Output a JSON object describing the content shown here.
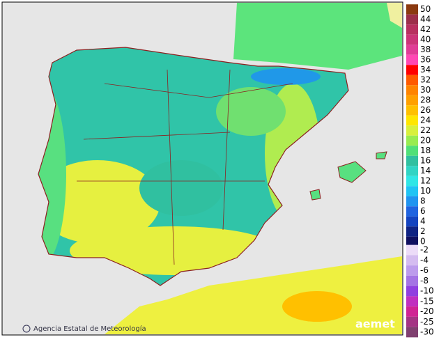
{
  "credit": "Agencia Estatal de Meteorología",
  "logo": "aemet",
  "legend": {
    "positive": [
      {
        "label": "50",
        "color": "#8b3a10"
      },
      {
        "label": "44",
        "color": "#9c2f4a"
      },
      {
        "label": "42",
        "color": "#b8305f"
      },
      {
        "label": "40",
        "color": "#cc3478"
      },
      {
        "label": "38",
        "color": "#e03c96"
      },
      {
        "label": "36",
        "color": "#ff48b4"
      },
      {
        "label": "34",
        "color": "#ff0000"
      },
      {
        "label": "32",
        "color": "#ff5a00"
      },
      {
        "label": "30",
        "color": "#ff8400"
      },
      {
        "label": "28",
        "color": "#ffa000"
      },
      {
        "label": "26",
        "color": "#ffc000"
      },
      {
        "label": "24",
        "color": "#ffe600"
      },
      {
        "label": "22",
        "color": "#d8f03c"
      },
      {
        "label": "20",
        "color": "#98ec50"
      },
      {
        "label": "18",
        "color": "#50e078"
      },
      {
        "label": "16",
        "color": "#30c0a0"
      },
      {
        "label": "14",
        "color": "#30d4c4"
      },
      {
        "label": "12",
        "color": "#30e6e6"
      },
      {
        "label": "10",
        "color": "#20c4f4"
      },
      {
        "label": "8",
        "color": "#2094f0"
      },
      {
        "label": "6",
        "color": "#2064e0"
      },
      {
        "label": "4",
        "color": "#1444c0"
      },
      {
        "label": "2",
        "color": "#102484"
      },
      {
        "label": "0",
        "color": "#101060"
      }
    ],
    "negative": [
      {
        "label": "-2",
        "color": "#ecdcf8"
      },
      {
        "label": "-4",
        "color": "#d4bcf0"
      },
      {
        "label": "-6",
        "color": "#bc9cec"
      },
      {
        "label": "-8",
        "color": "#a474e4"
      },
      {
        "label": "-10",
        "color": "#9040e0"
      },
      {
        "label": "-15",
        "color": "#c030c0"
      },
      {
        "label": "-20",
        "color": "#d02494"
      },
      {
        "label": "-25",
        "color": "#a43484"
      },
      {
        "label": "-30",
        "color": "#804070"
      }
    ]
  }
}
